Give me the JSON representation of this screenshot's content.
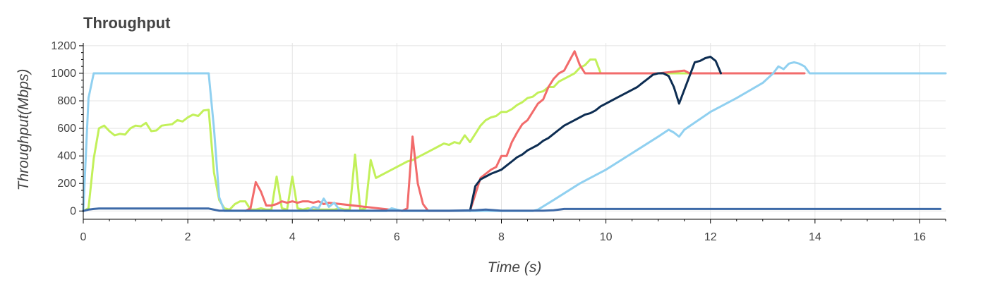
{
  "chart_data": {
    "type": "line",
    "title": "Throughput",
    "xlabel": "Time (s)",
    "ylabel": "Throughput(Mbps)",
    "xlim": [
      0,
      16.5
    ],
    "ylim": [
      -60,
      1220
    ],
    "grid": true,
    "legend": "none",
    "x_ticks": [
      0,
      2,
      4,
      6,
      8,
      10,
      12,
      14,
      16
    ],
    "y_ticks": [
      0,
      200,
      400,
      600,
      800,
      1000,
      1200
    ],
    "series": [
      {
        "color": "#c2f05a",
        "x": [
          0,
          0.1,
          0.2,
          0.3,
          0.4,
          0.5,
          0.6,
          0.7,
          0.8,
          0.9,
          1.0,
          1.1,
          1.2,
          1.3,
          1.4,
          1.5,
          1.6,
          1.7,
          1.8,
          1.9,
          2.0,
          2.1,
          2.2,
          2.3,
          2.4,
          2.5,
          2.6,
          2.7,
          2.8,
          2.9,
          3.0,
          3.1,
          3.2,
          3.3,
          3.4,
          3.5,
          3.6,
          3.7,
          3.8,
          3.9,
          4.0,
          4.1,
          4.2,
          4.3,
          4.4,
          4.5,
          4.6,
          4.7,
          4.8,
          4.9,
          5.0,
          5.1,
          5.2,
          5.3,
          5.4,
          5.5,
          5.6,
          5.7,
          5.8,
          5.9,
          6.0,
          6.1,
          6.2,
          6.3,
          6.4,
          6.5,
          6.6,
          6.7,
          6.8,
          6.9,
          7.0,
          7.1,
          7.2,
          7.3,
          7.4,
          7.5,
          7.6,
          7.7,
          7.8,
          7.9,
          8.0,
          8.1,
          8.2,
          8.3,
          8.4,
          8.5,
          8.6,
          8.7,
          8.8,
          8.9,
          9.0,
          9.1,
          9.2,
          9.3,
          9.4,
          9.5,
          9.6,
          9.7,
          9.8,
          9.9,
          10.0,
          10.1,
          10.2,
          10.3,
          10.4,
          10.5,
          10.6,
          10.7,
          10.8,
          10.9,
          11.0,
          11.1,
          11.2,
          11.3,
          11.4,
          11.5,
          11.6,
          11.7,
          11.8,
          11.9,
          12.0
        ],
        "y": [
          0,
          20,
          380,
          600,
          620,
          580,
          550,
          560,
          555,
          600,
          620,
          615,
          640,
          580,
          585,
          620,
          625,
          630,
          660,
          650,
          680,
          700,
          690,
          730,
          735,
          280,
          80,
          20,
          10,
          50,
          70,
          70,
          10,
          10,
          20,
          10,
          10,
          250,
          20,
          10,
          250,
          20,
          10,
          20,
          10,
          10,
          10,
          10,
          10,
          20,
          10,
          10,
          410,
          10,
          20,
          370,
          240,
          260,
          280,
          300,
          320,
          340,
          360,
          370,
          390,
          410,
          430,
          450,
          470,
          490,
          480,
          500,
          490,
          550,
          500,
          560,
          620,
          660,
          680,
          690,
          720,
          720,
          740,
          770,
          790,
          820,
          830,
          860,
          870,
          900,
          900,
          940,
          960,
          980,
          1000,
          1040,
          1060,
          1100,
          1100,
          1000,
          1000,
          1000,
          1000,
          1000,
          1000,
          1000,
          1000,
          1000,
          1000,
          1000,
          1000,
          1000,
          1000,
          1000,
          1000,
          1000,
          1000,
          1000,
          1000,
          1000,
          1000
        ]
      },
      {
        "color": "#f26b6b",
        "x": [
          3.1,
          3.2,
          3.3,
          3.4,
          3.5,
          3.6,
          3.7,
          3.8,
          3.9,
          4.0,
          4.1,
          4.2,
          4.3,
          4.4,
          4.5,
          4.6,
          4.7,
          6.1,
          6.2,
          6.3,
          6.4,
          6.5,
          6.6,
          7.4,
          7.5,
          7.6,
          7.7,
          7.8,
          7.9,
          8.0,
          8.1,
          8.2,
          8.3,
          8.4,
          8.5,
          8.6,
          8.7,
          8.8,
          8.9,
          9.0,
          9.1,
          9.2,
          9.3,
          9.4,
          9.5,
          9.6,
          9.7,
          9.8,
          9.9,
          10.0,
          10.5,
          11.0,
          11.5,
          11.6,
          11.7,
          12.0,
          12.5,
          13.0,
          13.5,
          13.8
        ],
        "y": [
          0,
          20,
          210,
          140,
          40,
          40,
          50,
          70,
          60,
          70,
          60,
          70,
          70,
          60,
          70,
          50,
          60,
          0,
          20,
          540,
          200,
          50,
          0,
          0,
          120,
          240,
          270,
          300,
          320,
          400,
          400,
          500,
          570,
          630,
          660,
          720,
          780,
          810,
          900,
          960,
          1000,
          1020,
          1090,
          1160,
          1060,
          1000,
          1000,
          1000,
          1000,
          1000,
          1000,
          1000,
          1020,
          1000,
          1000,
          1000,
          1000,
          1000,
          1000,
          1000
        ]
      },
      {
        "color": "#0d2d52",
        "x": [
          7.4,
          7.5,
          7.6,
          7.7,
          7.8,
          7.9,
          8.0,
          8.1,
          8.2,
          8.3,
          8.4,
          8.5,
          8.6,
          8.7,
          8.8,
          8.9,
          9.0,
          9.1,
          9.2,
          9.3,
          9.4,
          9.5,
          9.6,
          9.7,
          9.8,
          9.9,
          10.0,
          10.1,
          10.2,
          10.3,
          10.4,
          10.5,
          10.6,
          10.7,
          10.8,
          10.9,
          11.0,
          11.1,
          11.2,
          11.3,
          11.4,
          11.5,
          11.6,
          11.7,
          11.8,
          11.9,
          12.0,
          12.1,
          12.2
        ],
        "y": [
          0,
          180,
          230,
          250,
          270,
          285,
          300,
          330,
          360,
          390,
          410,
          440,
          460,
          480,
          510,
          530,
          560,
          590,
          620,
          640,
          660,
          680,
          700,
          710,
          730,
          760,
          780,
          800,
          820,
          840,
          860,
          880,
          900,
          930,
          960,
          990,
          1000,
          1000,
          980,
          900,
          780,
          880,
          980,
          1080,
          1090,
          1110,
          1120,
          1090,
          1000
        ]
      },
      {
        "color": "#90d0f0",
        "x": [
          0,
          0.1,
          0.2,
          0.3,
          0.5,
          1.0,
          1.5,
          2.0,
          2.4,
          2.5,
          2.6,
          2.7,
          3.0,
          4.0,
          4.3,
          4.4,
          4.5,
          4.6,
          4.7,
          4.8,
          4.9,
          5.0,
          5.8,
          5.9,
          6.0,
          6.1,
          7.5,
          8.0,
          8.6,
          8.7,
          9.0,
          9.5,
          10.0,
          10.5,
          11.0,
          11.2,
          11.3,
          11.4,
          11.5,
          12.0,
          12.5,
          13.0,
          13.2,
          13.3,
          13.4,
          13.5,
          13.6,
          13.7,
          13.8,
          13.9,
          14.0,
          15.0,
          16.0,
          16.5
        ],
        "y": [
          0,
          820,
          1000,
          1000,
          1000,
          1000,
          1000,
          1000,
          1000,
          600,
          100,
          0,
          0,
          0,
          0,
          30,
          20,
          90,
          30,
          60,
          10,
          0,
          0,
          20,
          10,
          0,
          0,
          0,
          0,
          10,
          80,
          200,
          300,
          420,
          540,
          590,
          570,
          540,
          590,
          720,
          820,
          930,
          1000,
          1050,
          1030,
          1070,
          1080,
          1070,
          1050,
          1000,
          1000,
          1000,
          1000,
          1000
        ]
      },
      {
        "color": "#3d6aa8",
        "x": [
          0,
          0.1,
          0.2,
          0.3,
          0.5,
          1.0,
          1.5,
          2.0,
          2.4,
          2.6,
          3.0,
          4.0,
          5.0,
          6.0,
          7.0,
          7.5,
          7.7,
          8.0,
          8.5,
          8.8,
          9.0,
          9.2,
          9.5,
          10.0,
          11.0,
          12.0,
          13.0,
          14.0,
          15.0,
          16.0,
          16.4
        ],
        "y": [
          0,
          10,
          15,
          18,
          18,
          18,
          18,
          18,
          18,
          2,
          2,
          2,
          2,
          2,
          2,
          5,
          10,
          2,
          2,
          2,
          5,
          15,
          15,
          15,
          15,
          15,
          15,
          15,
          15,
          15,
          15
        ]
      }
    ]
  }
}
